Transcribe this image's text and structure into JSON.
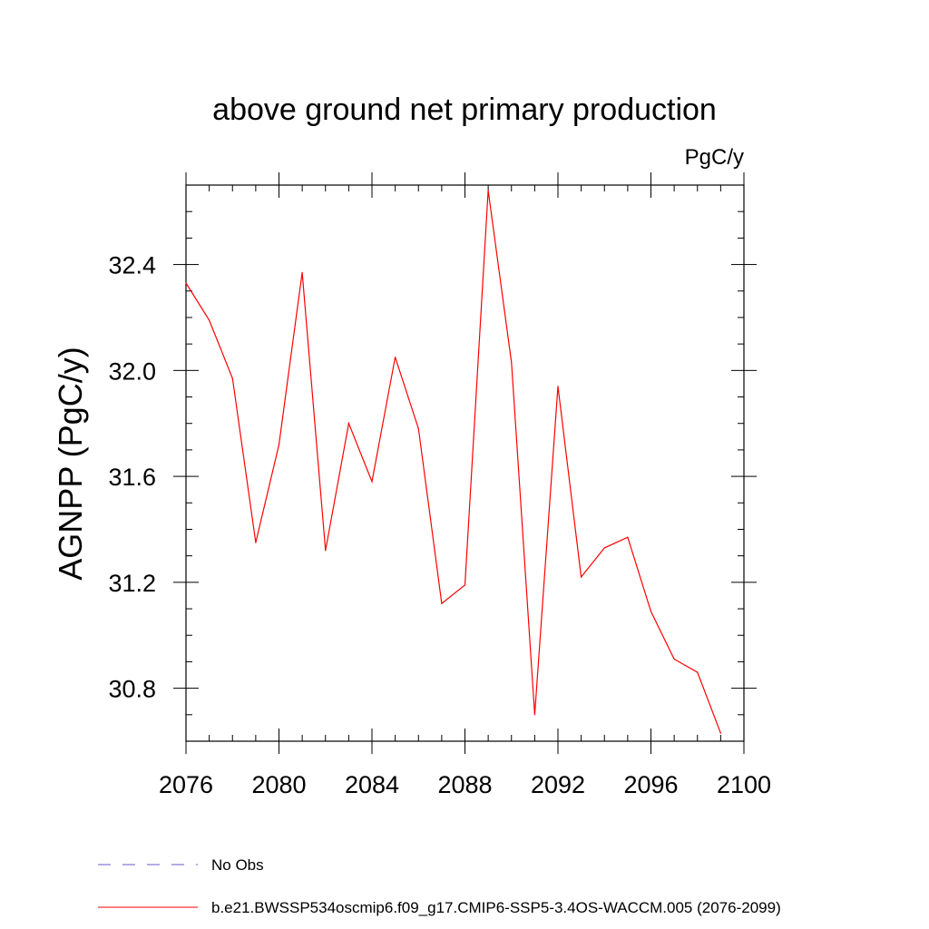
{
  "chart_data": {
    "type": "line",
    "title": "above ground net primary production",
    "units": "PgC/y",
    "ylabel": "AGNPP  (PgC/y)",
    "xlim": [
      2076,
      2100
    ],
    "ylim": [
      30.6,
      32.7
    ],
    "x_ticks": [
      "2076",
      "2080",
      "2084",
      "2088",
      "2092",
      "2096",
      "2100"
    ],
    "y_ticks": [
      "30.8",
      "31.2",
      "31.6",
      "32.0",
      "32.4"
    ],
    "legend": [
      {
        "label": "No Obs",
        "color": "#6a5acd",
        "style": "dashed"
      },
      {
        "label": "b.e21.BWSSP534oscmip6.f09_g17.CMIP6-SSP5-3.4OS-WACCM.005 (2076-2099)",
        "color": "#ff0000",
        "style": "solid"
      }
    ],
    "series": [
      {
        "name": "b.e21.BWSSP534oscmip6.f09_g17.CMIP6-SSP5-3.4OS-WACCM.005 (2076-2099)",
        "color": "#ff0000",
        "x": [
          2076,
          2077,
          2078,
          2079,
          2080,
          2081,
          2082,
          2083,
          2084,
          2085,
          2086,
          2087,
          2088,
          2089,
          2090,
          2091,
          2092,
          2093,
          2094,
          2095,
          2096,
          2097,
          2098,
          2099
        ],
        "y": [
          32.33,
          32.19,
          31.97,
          31.35,
          31.72,
          32.37,
          31.32,
          31.8,
          31.58,
          32.05,
          31.78,
          31.12,
          31.19,
          32.68,
          32.03,
          30.7,
          31.94,
          31.22,
          31.33,
          31.37,
          31.09,
          30.91,
          30.86,
          30.63
        ]
      }
    ]
  }
}
